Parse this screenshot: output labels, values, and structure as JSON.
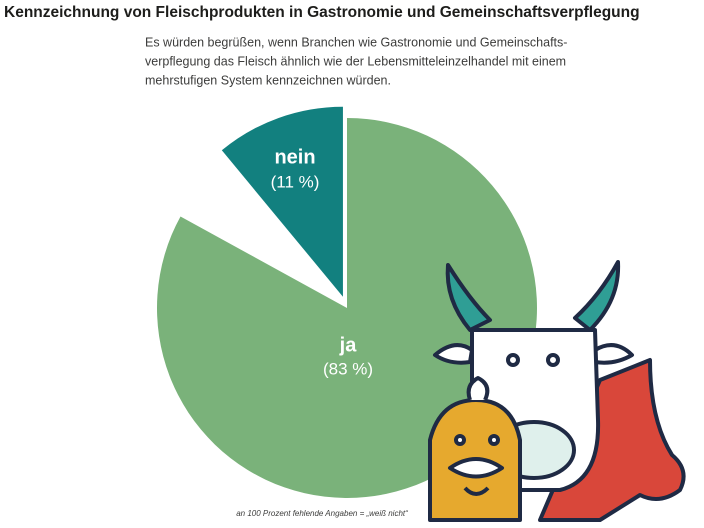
{
  "chart_data": {
    "type": "pie",
    "title": "Kennzeichnung von Fleischprodukten in Gastronomie und Gemeinschaftsverpflegung",
    "subtitle": [
      "Es würden begrüßen, wenn Branchen wie Gastronomie und Gemeinschafts-",
      "verpflegung das Fleisch ähnlich wie der Lebensmitteleinzelhandel mit einem",
      "mehrstufigen System kennzeichnen würden."
    ],
    "categories": [
      "ja",
      "nein"
    ],
    "values": [
      83,
      11
    ],
    "value_labels": [
      "(83 %)",
      "(11 %)"
    ],
    "colors": [
      "#7ab27a",
      "#12807f"
    ],
    "exploded": [
      false,
      true
    ],
    "note": "an 100 Prozent fehlende Angaben = „weiß nicht“"
  }
}
